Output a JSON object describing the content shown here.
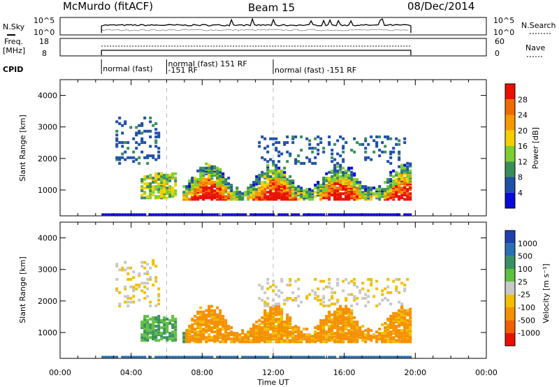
{
  "header": {
    "radar": "McMurdo (fitACF)",
    "beam": "Beam 15",
    "date": "08/Dec/2014"
  },
  "panels": {
    "nsky": {
      "label": "N.Sky",
      "right_label": "N.Search",
      "ticks_left": [
        "10^5",
        "10^0"
      ],
      "ticks_right": [
        "10^5",
        "10^0"
      ]
    },
    "freq": {
      "label_line1": "Freq.",
      "label_line2": "[MHz]",
      "right_label": "Nave",
      "ticks_left": [
        "18",
        "8"
      ],
      "ticks_right": [
        "60",
        "0"
      ]
    },
    "cpid": {
      "label": "CPID",
      "segments": [
        {
          "text": "normal (fast)",
          "start": 2.33
        },
        {
          "text": "normal (fast) 151 RF",
          "start": 6.0
        },
        {
          "text": "-151 RF",
          "start": 6.0
        },
        {
          "text": "normal (fast) -151 RF",
          "start": 12.0
        }
      ]
    }
  },
  "chart_data": [
    {
      "type": "heatmap",
      "name": "power",
      "xlabel": "",
      "ylabel": "Slant Range [km]",
      "xlim": [
        0,
        24
      ],
      "ylim": [
        180,
        4500
      ],
      "yticks": [
        1000,
        2000,
        3000,
        4000
      ],
      "colorbar": {
        "label": "Power [dB]",
        "ticks": [
          "4",
          "8",
          "12",
          "16",
          "20",
          "24",
          "28"
        ],
        "colors": [
          "#0a0ad8",
          "#1e50a6",
          "#3a8c5a",
          "#7ccf2e",
          "#f4d000",
          "#f59a00",
          "#f06a00",
          "#e81000"
        ]
      },
      "data_span": [
        2.33,
        19.75
      ]
    },
    {
      "type": "heatmap",
      "name": "velocity",
      "xlabel": "Time UT",
      "ylabel": "Slant Range [km]",
      "xlim": [
        0,
        24
      ],
      "ylim": [
        180,
        4500
      ],
      "yticks": [
        1000,
        2000,
        3000,
        4000
      ],
      "xticks": [
        "00:00",
        "04:00",
        "08:00",
        "12:00",
        "16:00",
        "20:00",
        "00:00"
      ],
      "colorbar": {
        "label": "Velocity [m s⁻¹]",
        "ticks": [
          "1000",
          "500",
          "100",
          "25",
          "-25",
          "-100",
          "-500",
          "-1000"
        ],
        "colors": [
          "#2040b0",
          "#2a70b0",
          "#3a9060",
          "#60c040",
          "#c8c8c8",
          "#f0c000",
          "#f59000",
          "#f06000",
          "#e81000"
        ]
      },
      "data_span": [
        2.33,
        19.75
      ]
    }
  ]
}
